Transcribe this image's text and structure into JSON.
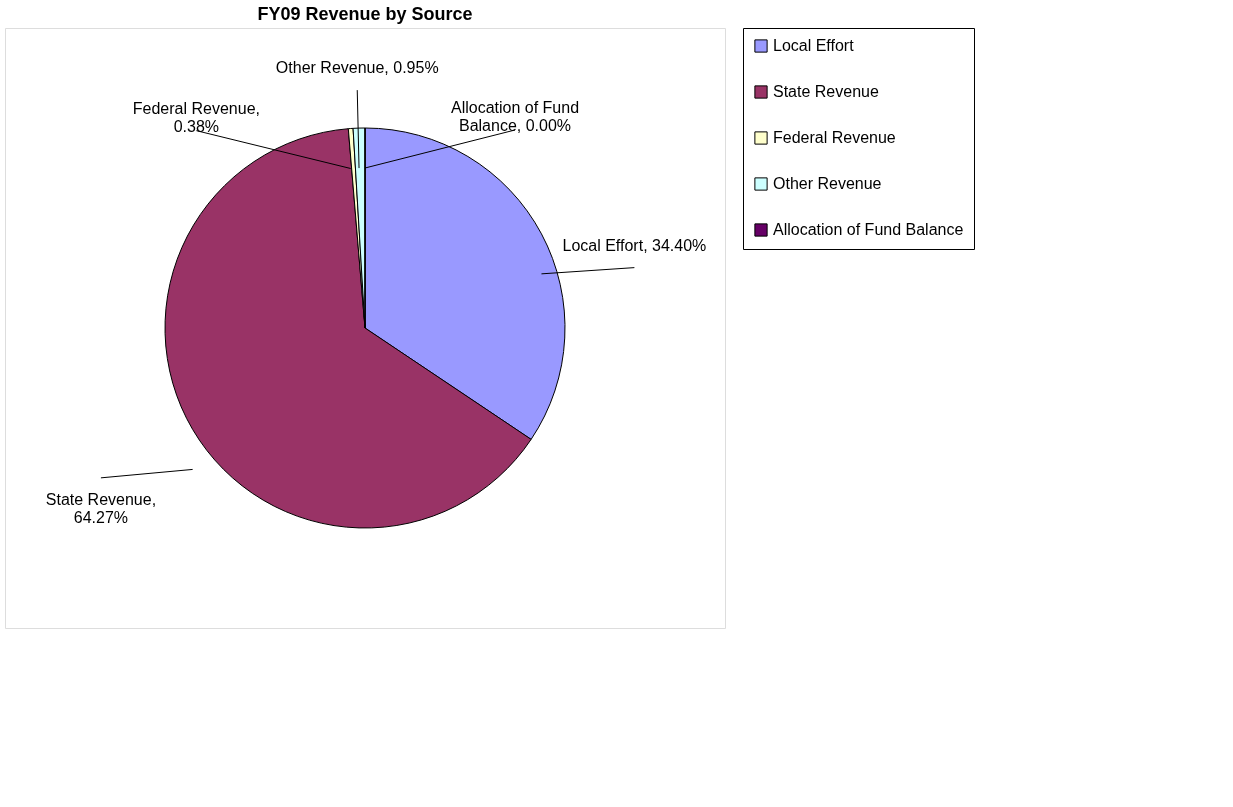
{
  "chart_data": {
    "type": "pie",
    "title": "FY09 Revenue by Source",
    "categories": [
      "Local Effort",
      "State Revenue",
      "Federal Revenue",
      "Other Revenue",
      "Allocation of Fund Balance"
    ],
    "values": [
      34.4,
      64.27,
      0.38,
      0.95,
      0.0
    ],
    "value_labels": [
      "Local Effort, 34.40%",
      "State Revenue, 64.27%",
      "Federal Revenue, 0.38%",
      "Other Revenue, 0.95%",
      "Allocation of Fund Balance, 0.00%"
    ],
    "colors": [
      "#9999ff",
      "#993366",
      "#ffffcc",
      "#ccffff",
      "#660066"
    ],
    "legend": "right"
  }
}
